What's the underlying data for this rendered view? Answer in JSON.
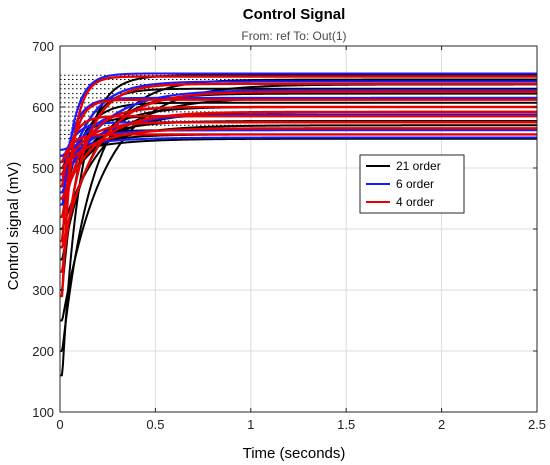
{
  "chart_data": {
    "type": "line",
    "title": "Control Signal",
    "subtitle": "From: ref  To: Out(1)",
    "xlabel": "Time (seconds)",
    "ylabel": "Control signal (mV)",
    "xlim": [
      0,
      2.5
    ],
    "ylim": [
      100,
      700
    ],
    "xticks": [
      0,
      0.5,
      1,
      1.5,
      2,
      2.5
    ],
    "xtick_labels": [
      "0",
      "0.5",
      "1",
      "1.5",
      "2",
      "2.5"
    ],
    "yticks": [
      100,
      200,
      300,
      400,
      500,
      600,
      700
    ],
    "ytick_labels": [
      "100",
      "200",
      "300",
      "400",
      "500",
      "600",
      "700"
    ],
    "grid": true,
    "legend_position": "right-middle",
    "series": [
      {
        "name": "21 order",
        "color": "#000000",
        "style": "solid",
        "final_values": [
          652,
          645,
          637,
          630,
          622,
          615,
          607,
          600,
          592,
          585,
          577,
          570,
          562,
          555,
          548
        ],
        "initial_values": [
          160,
          200,
          250,
          300,
          350,
          400,
          420,
          440,
          460,
          470,
          480,
          490,
          500,
          510,
          520
        ],
        "dotted_reference": true
      },
      {
        "name": "6 order",
        "color": "#1a1aff",
        "style": "stairs",
        "final_values": [
          655,
          642,
          628,
          615,
          600,
          588,
          575,
          562,
          550
        ],
        "initial_values": [
          440,
          460,
          470,
          480,
          490,
          500,
          510,
          520,
          530
        ]
      },
      {
        "name": "4 order",
        "color": "#e60000",
        "style": "solid",
        "final_values": [
          650,
          638,
          625,
          612,
          600,
          592,
          585,
          575,
          565,
          555
        ],
        "initial_values": [
          290,
          330,
          370,
          380,
          420,
          450,
          470,
          490,
          500,
          510
        ]
      }
    ]
  }
}
